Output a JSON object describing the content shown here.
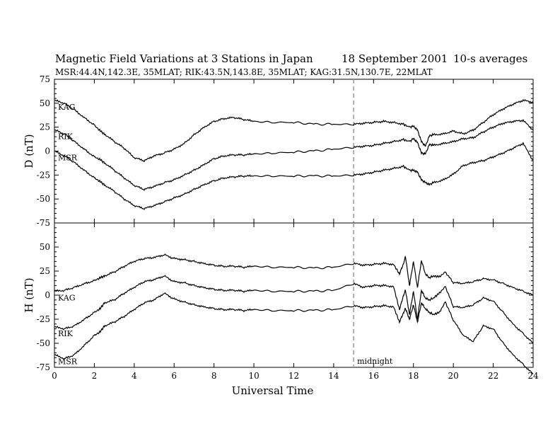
{
  "header": {
    "title": "Magnetic Field Variations at 3 Stations in Japan",
    "date": "18 September 2001",
    "averaging": "10-s averages",
    "stations_line": "MSR:44.4N,142.3E, 35MLAT;  RIK:43.5N,143.8E, 35MLAT;  KAG:31.5N,130.7E, 22MLAT"
  },
  "chart_data": [
    {
      "type": "line",
      "panel": "top",
      "ylabel": "D (nT)",
      "xlabel": "",
      "xlim": [
        0,
        24
      ],
      "ylim": [
        -75,
        75
      ],
      "yticks": [
        75,
        50,
        25,
        0,
        -25,
        -50,
        -75
      ],
      "xticks": [
        0,
        2,
        4,
        6,
        8,
        10,
        12,
        14,
        16,
        18,
        20,
        22,
        24
      ],
      "series": [
        {
          "name": "KAG",
          "x": [
            0,
            0.5,
            1,
            1.5,
            2,
            2.3,
            2.5,
            3,
            3.5,
            4,
            4.5,
            5,
            5.5,
            6,
            6.5,
            7,
            7.5,
            8,
            8.5,
            9,
            9.5,
            10,
            11,
            12,
            13,
            14,
            15,
            15.5,
            16,
            16.5,
            17,
            17.5,
            17.8,
            18,
            18.2,
            18.4,
            18.6,
            18.8,
            19,
            19.5,
            20,
            20.5,
            21,
            21.5,
            22,
            22.5,
            23,
            23.5,
            24
          ],
          "y": [
            53,
            50,
            43,
            35,
            27,
            21,
            18,
            10,
            3,
            -7,
            -10,
            -5,
            -2,
            2,
            8,
            17,
            25,
            31,
            34,
            35,
            33,
            31,
            30,
            30,
            28,
            28,
            28,
            29,
            30,
            31,
            30,
            28,
            25,
            26,
            22,
            10,
            5,
            16,
            17,
            18,
            21,
            18,
            22,
            30,
            38,
            44,
            49,
            53,
            51
          ]
        },
        {
          "name": "RIK",
          "x": [
            0,
            0.5,
            1,
            1.5,
            2,
            2.3,
            2.5,
            3,
            3.5,
            4,
            4.5,
            5,
            5.5,
            6,
            6.5,
            7,
            7.5,
            8,
            8.5,
            9,
            9.5,
            10,
            11,
            12,
            13,
            14,
            15,
            15.5,
            16,
            16.5,
            17,
            17.5,
            17.8,
            18,
            18.2,
            18.4,
            18.6,
            18.8,
            19,
            19.5,
            20,
            20.5,
            21,
            21.5,
            22,
            22.5,
            23,
            23.5,
            24
          ],
          "y": [
            22,
            18,
            10,
            2,
            -6,
            -9,
            -12,
            -20,
            -28,
            -36,
            -40,
            -37,
            -33,
            -30,
            -25,
            -20,
            -14,
            -8,
            -5,
            -4,
            -4,
            -3,
            -2,
            -1,
            0,
            2,
            4,
            5,
            6,
            8,
            10,
            12,
            10,
            13,
            9,
            -2,
            -3,
            7,
            6,
            8,
            10,
            13,
            14,
            20,
            25,
            29,
            31,
            32,
            22
          ]
        },
        {
          "name": "MSR",
          "x": [
            0,
            0.5,
            1,
            1.5,
            2,
            2.3,
            2.5,
            3,
            3.5,
            4,
            4.5,
            5,
            5.5,
            6,
            6.5,
            7,
            7.5,
            8,
            8.5,
            9,
            9.5,
            10,
            11,
            12,
            13,
            14,
            15,
            15.5,
            16,
            16.5,
            17,
            17.5,
            17.8,
            18,
            18.2,
            18.4,
            18.6,
            18.8,
            19,
            19.5,
            20,
            20.5,
            21,
            21.5,
            22,
            22.5,
            23,
            23.5,
            24
          ],
          "y": [
            0,
            -5,
            -12,
            -20,
            -28,
            -32,
            -35,
            -42,
            -50,
            -57,
            -60,
            -57,
            -53,
            -49,
            -45,
            -40,
            -35,
            -31,
            -28,
            -27,
            -26,
            -26,
            -26,
            -26,
            -26,
            -26,
            -25,
            -24,
            -22,
            -20,
            -18,
            -16,
            -20,
            -20,
            -22,
            -30,
            -33,
            -35,
            -33,
            -30,
            -24,
            -15,
            -12,
            -10,
            -6,
            -2,
            3,
            8,
            -10
          ]
        }
      ]
    },
    {
      "type": "line",
      "panel": "bottom",
      "ylabel": "H (nT)",
      "xlabel": "Universal Time",
      "xlim": [
        0,
        24
      ],
      "ylim": [
        -75,
        75
      ],
      "yticks": [
        50,
        25,
        0,
        -25,
        -50,
        -75
      ],
      "xticks": [
        0,
        2,
        4,
        6,
        8,
        10,
        12,
        14,
        16,
        18,
        20,
        22,
        24
      ],
      "series": [
        {
          "name": "KAG",
          "x": [
            0,
            0.5,
            1,
            1.5,
            2,
            2.3,
            2.5,
            3,
            3.5,
            4,
            4.5,
            5,
            5.5,
            6,
            6.5,
            7,
            7.5,
            8,
            8.5,
            9,
            9.5,
            10,
            11,
            12,
            13,
            14,
            15,
            15.5,
            16,
            16.5,
            17,
            17.3,
            17.5,
            17.6,
            17.8,
            18,
            18.2,
            18.4,
            18.6,
            18.8,
            19,
            19.3,
            19.6,
            20,
            20.5,
            21,
            21.5,
            22,
            22.5,
            23,
            23.5,
            24
          ],
          "y": [
            4,
            5,
            8,
            12,
            15,
            18,
            20,
            24,
            30,
            35,
            38,
            39,
            42,
            38,
            37,
            35,
            33,
            31,
            30,
            30,
            29,
            30,
            29,
            29,
            28,
            29,
            33,
            31,
            32,
            33,
            32,
            22,
            33,
            40,
            10,
            35,
            8,
            36,
            22,
            18,
            20,
            19,
            24,
            13,
            12,
            14,
            17,
            16,
            12,
            8,
            4,
            0
          ]
        },
        {
          "name": "RIK",
          "x": [
            0,
            0.5,
            1,
            1.5,
            2,
            2.3,
            2.5,
            3,
            3.5,
            4,
            4.5,
            5,
            5.5,
            6,
            6.5,
            7,
            7.5,
            8,
            8.5,
            9,
            9.5,
            10,
            11,
            12,
            13,
            14,
            15,
            15.5,
            16,
            16.5,
            17,
            17.3,
            17.5,
            17.6,
            17.8,
            18,
            18.2,
            18.4,
            18.6,
            18.8,
            19,
            19.3,
            19.6,
            20,
            20.5,
            21,
            21.5,
            22,
            22.5,
            23,
            23.5,
            24
          ],
          "y": [
            -33,
            -35,
            -32,
            -25,
            -18,
            -14,
            -8,
            -5,
            2,
            8,
            14,
            16,
            20,
            14,
            13,
            10,
            8,
            6,
            5,
            5,
            4,
            5,
            4,
            4,
            4,
            5,
            12,
            8,
            10,
            10,
            9,
            -15,
            0,
            5,
            -20,
            4,
            -25,
            5,
            -3,
            -5,
            -3,
            2,
            9,
            -12,
            -13,
            -10,
            -3,
            -6,
            -18,
            -30,
            -40,
            -50
          ]
        },
        {
          "name": "MSR",
          "x": [
            0,
            0.5,
            1,
            1.5,
            2,
            2.3,
            2.5,
            3,
            3.5,
            4,
            4.5,
            5,
            5.5,
            6,
            6.5,
            7,
            7.5,
            8,
            8.5,
            9,
            9.5,
            10,
            11,
            12,
            13,
            14,
            15,
            15.5,
            16,
            16.5,
            17,
            17.3,
            17.5,
            17.6,
            17.8,
            18,
            18.2,
            18.4,
            18.6,
            18.8,
            19,
            19.3,
            19.6,
            20,
            20.5,
            21,
            21.5,
            22,
            22.5,
            23,
            23.5,
            24
          ],
          "y": [
            -62,
            -66,
            -62,
            -52,
            -42,
            -38,
            -32,
            -28,
            -22,
            -15,
            -8,
            -5,
            2,
            -4,
            -7,
            -10,
            -12,
            -14,
            -15,
            -15,
            -16,
            -15,
            -16,
            -16,
            -16,
            -15,
            -11,
            -13,
            -12,
            -11,
            -12,
            -28,
            -18,
            -14,
            -25,
            -10,
            -28,
            -8,
            -14,
            -18,
            -20,
            -18,
            -7,
            -26,
            -42,
            -48,
            -32,
            -35,
            -50,
            -62,
            -72,
            -82
          ]
        }
      ]
    }
  ],
  "annotations": {
    "midnight_label": "midnight",
    "midnight_ut": 15
  },
  "colors": {
    "line": "#000000",
    "midnight_line": "#a0a0a0"
  }
}
